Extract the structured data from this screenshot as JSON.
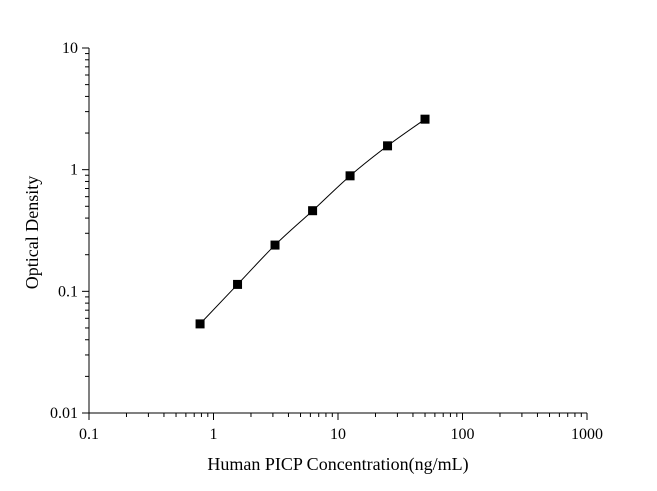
{
  "chart_data": {
    "type": "scatter",
    "title": "",
    "xlabel": "Human PICP Concentration(ng/mL)",
    "ylabel": "Optical Density",
    "x_scale": "log",
    "y_scale": "log",
    "xlim": [
      0.1,
      1000
    ],
    "ylim": [
      0.01,
      10
    ],
    "x_ticks": [
      {
        "value": 0.1,
        "label": "0.1"
      },
      {
        "value": 1,
        "label": "1"
      },
      {
        "value": 10,
        "label": "10"
      },
      {
        "value": 100,
        "label": "100"
      },
      {
        "value": 1000,
        "label": "1000"
      }
    ],
    "y_ticks": [
      {
        "value": 0.01,
        "label": "0.01"
      },
      {
        "value": 0.1,
        "label": "0.1"
      },
      {
        "value": 1,
        "label": "1"
      },
      {
        "value": 10,
        "label": "10"
      }
    ],
    "grid": false,
    "legend": "none",
    "fit_curve": true,
    "series": [
      {
        "x": [
          0.78,
          1.56,
          3.12,
          6.25,
          12.5,
          25,
          50
        ],
        "y": [
          0.054,
          0.114,
          0.24,
          0.46,
          0.89,
          1.57,
          2.6
        ]
      }
    ],
    "colors": {
      "marker": "#000000",
      "line": "#000000",
      "axis": "#000000"
    }
  }
}
